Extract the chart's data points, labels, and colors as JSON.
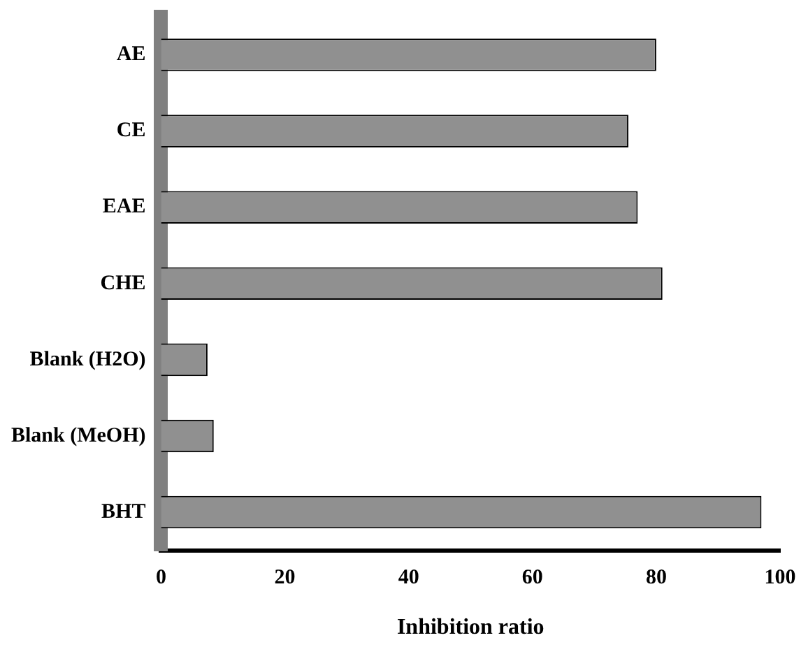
{
  "chart_data": {
    "type": "bar",
    "orientation": "horizontal",
    "xlabel": "Inhibition ratio",
    "categories": [
      "AE",
      "CE",
      "EAE",
      "CHE",
      "Blank (H2O)",
      "Blank (MeOH)",
      "BHT"
    ],
    "values": [
      80,
      75.5,
      77,
      81,
      7.5,
      8.5,
      97
    ],
    "color": "#909090",
    "xlim": [
      0,
      100
    ],
    "xticks": [
      0,
      20,
      40,
      60,
      80,
      100
    ],
    "grid": false,
    "legend": false
  }
}
